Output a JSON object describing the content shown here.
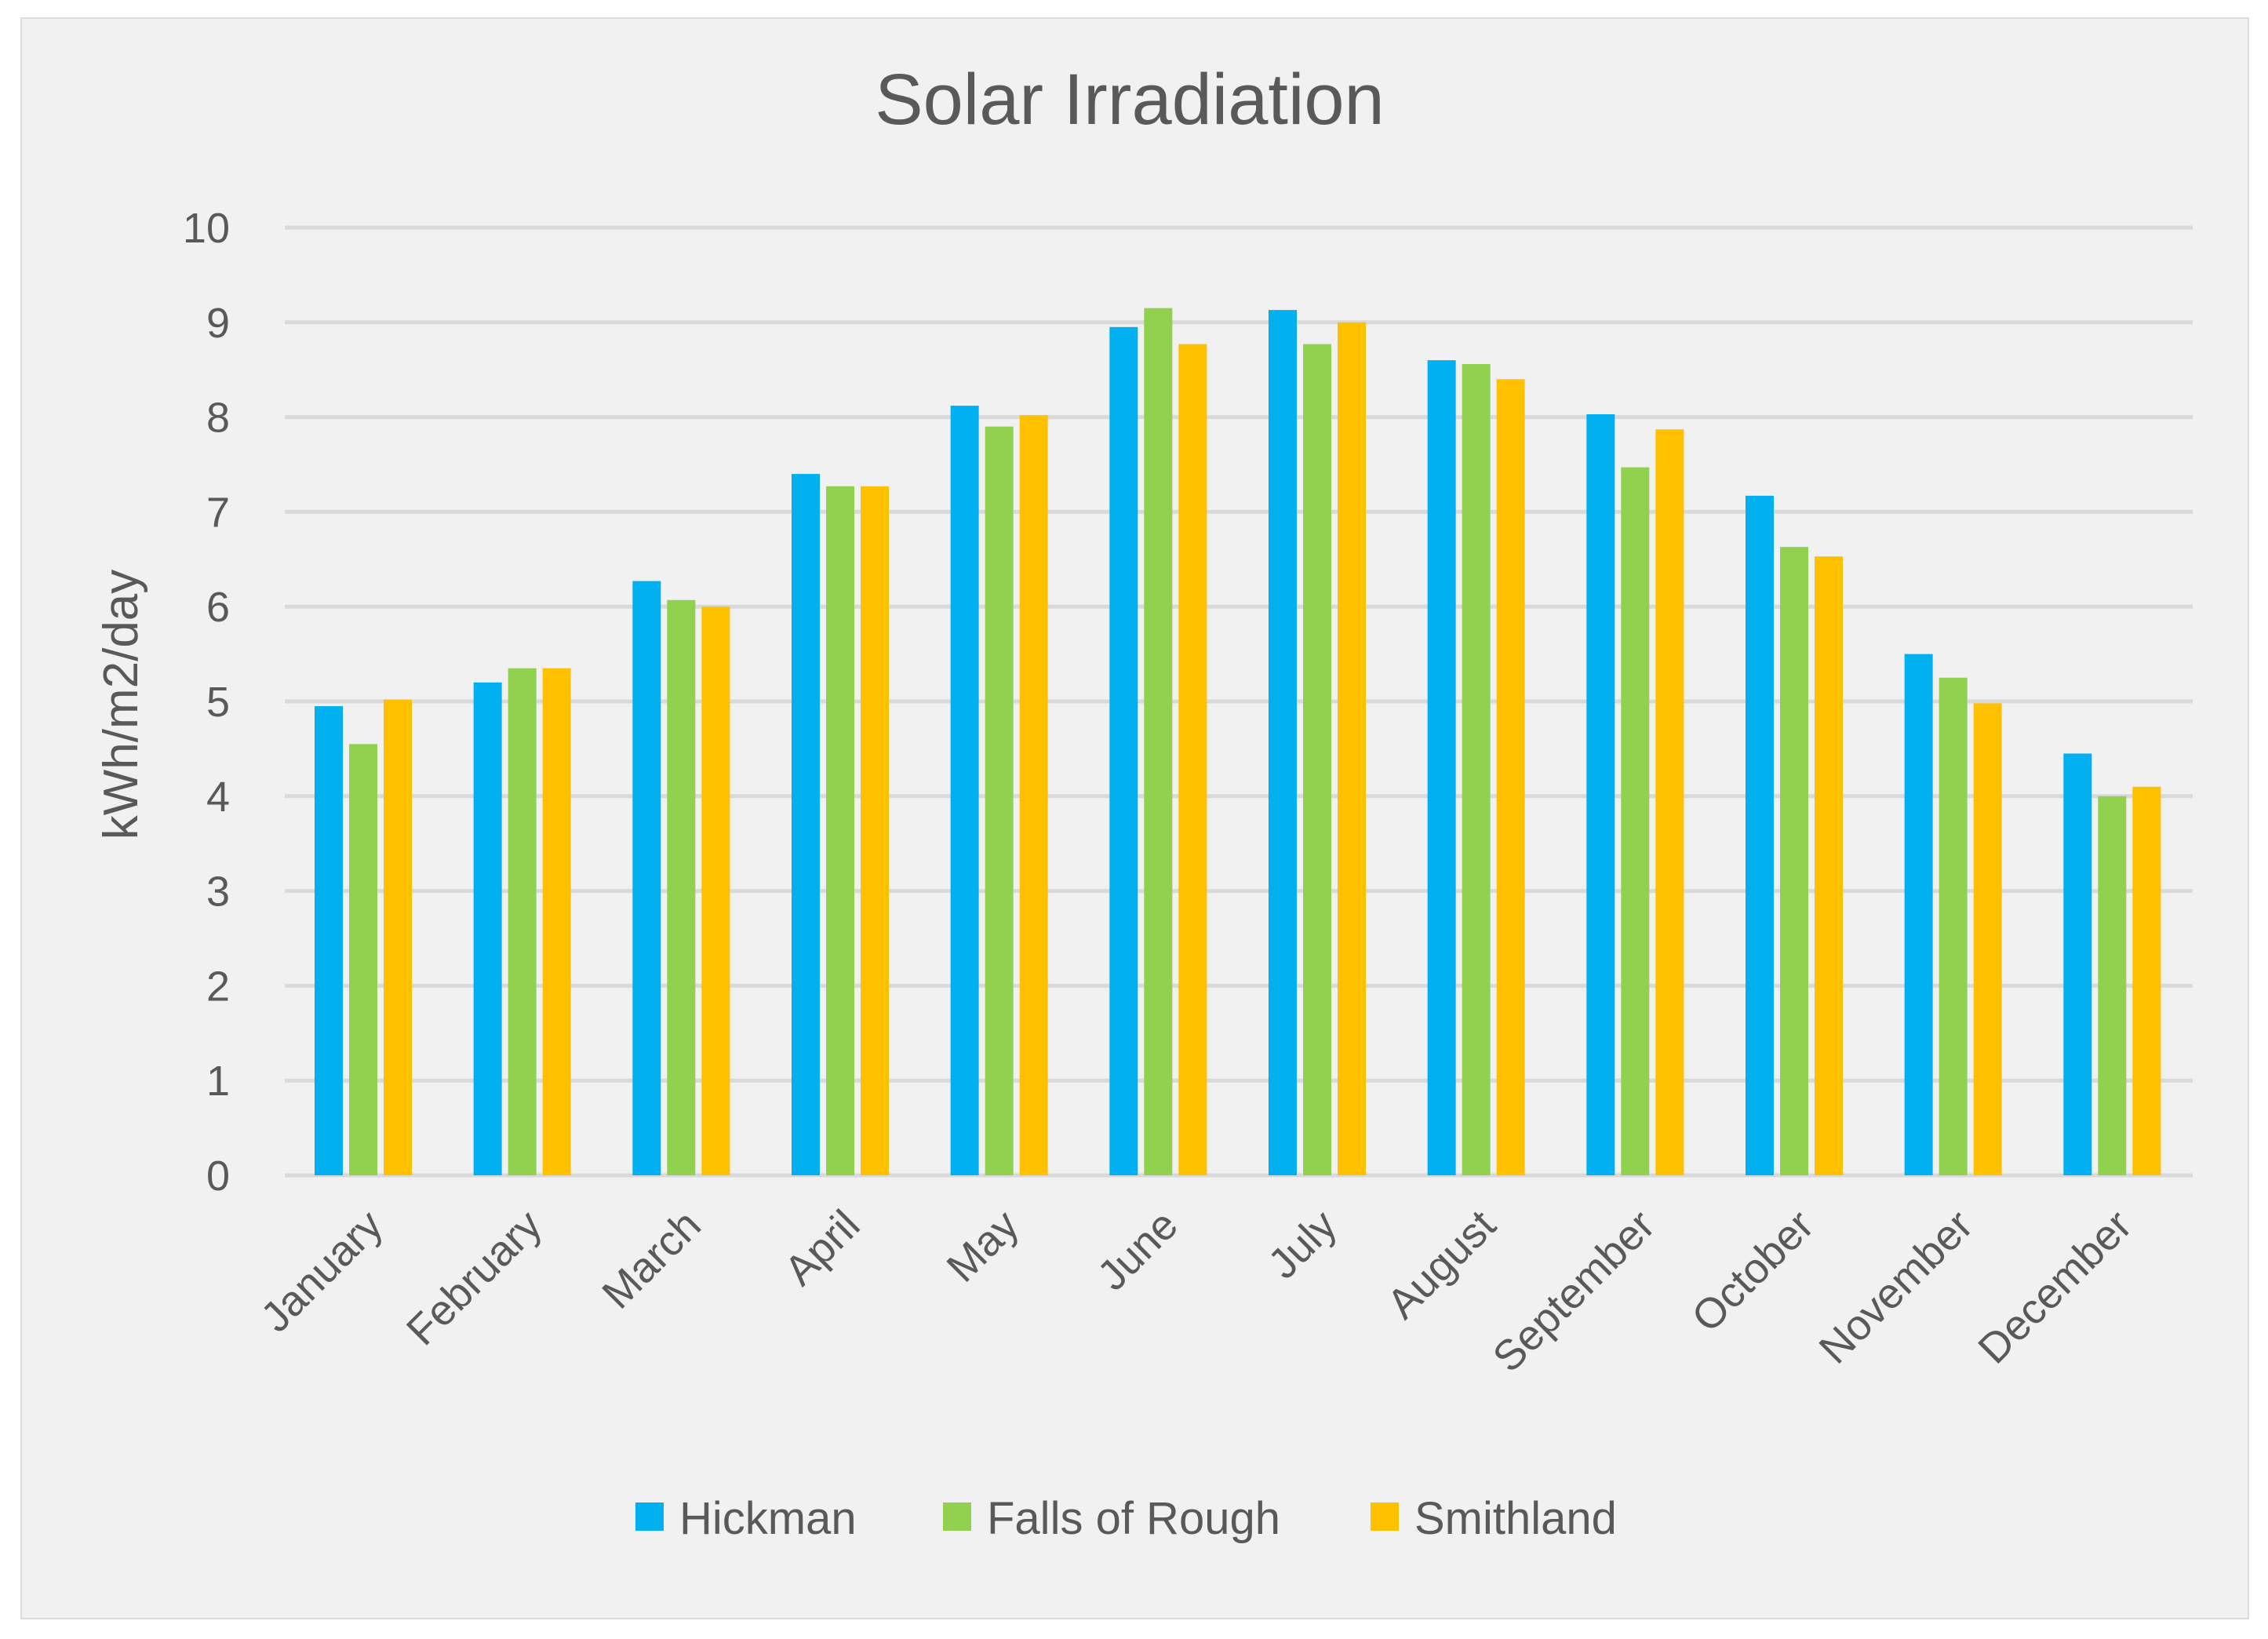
{
  "chart_data": {
    "type": "bar",
    "title": "Solar Irradiation",
    "xlabel": "",
    "ylabel": "kWh/m2/day",
    "ylim": [
      0,
      10
    ],
    "yticks": [
      "0",
      "1",
      "2",
      "3",
      "4",
      "5",
      "6",
      "7",
      "8",
      "9",
      "10"
    ],
    "grid": true,
    "legend_position": "bottom",
    "categories": [
      "January",
      "February",
      "March",
      "April",
      "May",
      "June",
      "July",
      "August",
      "September",
      "October",
      "November",
      "December"
    ],
    "series": [
      {
        "name": "Hickman",
        "color": "#00b0f0",
        "values": [
          4.95,
          5.2,
          6.27,
          7.4,
          8.12,
          8.95,
          9.13,
          8.6,
          8.03,
          7.17,
          5.5,
          4.45
        ]
      },
      {
        "name": "Falls of Rough",
        "color": "#92d050",
        "values": [
          4.55,
          5.35,
          6.07,
          7.27,
          7.9,
          9.15,
          8.77,
          8.56,
          7.47,
          6.63,
          5.25,
          4.0
        ]
      },
      {
        "name": "Smithland",
        "color": "#ffc000",
        "values": [
          5.02,
          5.35,
          6.0,
          7.27,
          8.02,
          8.77,
          9.0,
          8.4,
          7.87,
          6.53,
          4.98,
          4.1
        ]
      }
    ]
  },
  "colors": {
    "background": "#f1f1f1",
    "gridline": "#d9d9d9",
    "text": "#595959"
  }
}
